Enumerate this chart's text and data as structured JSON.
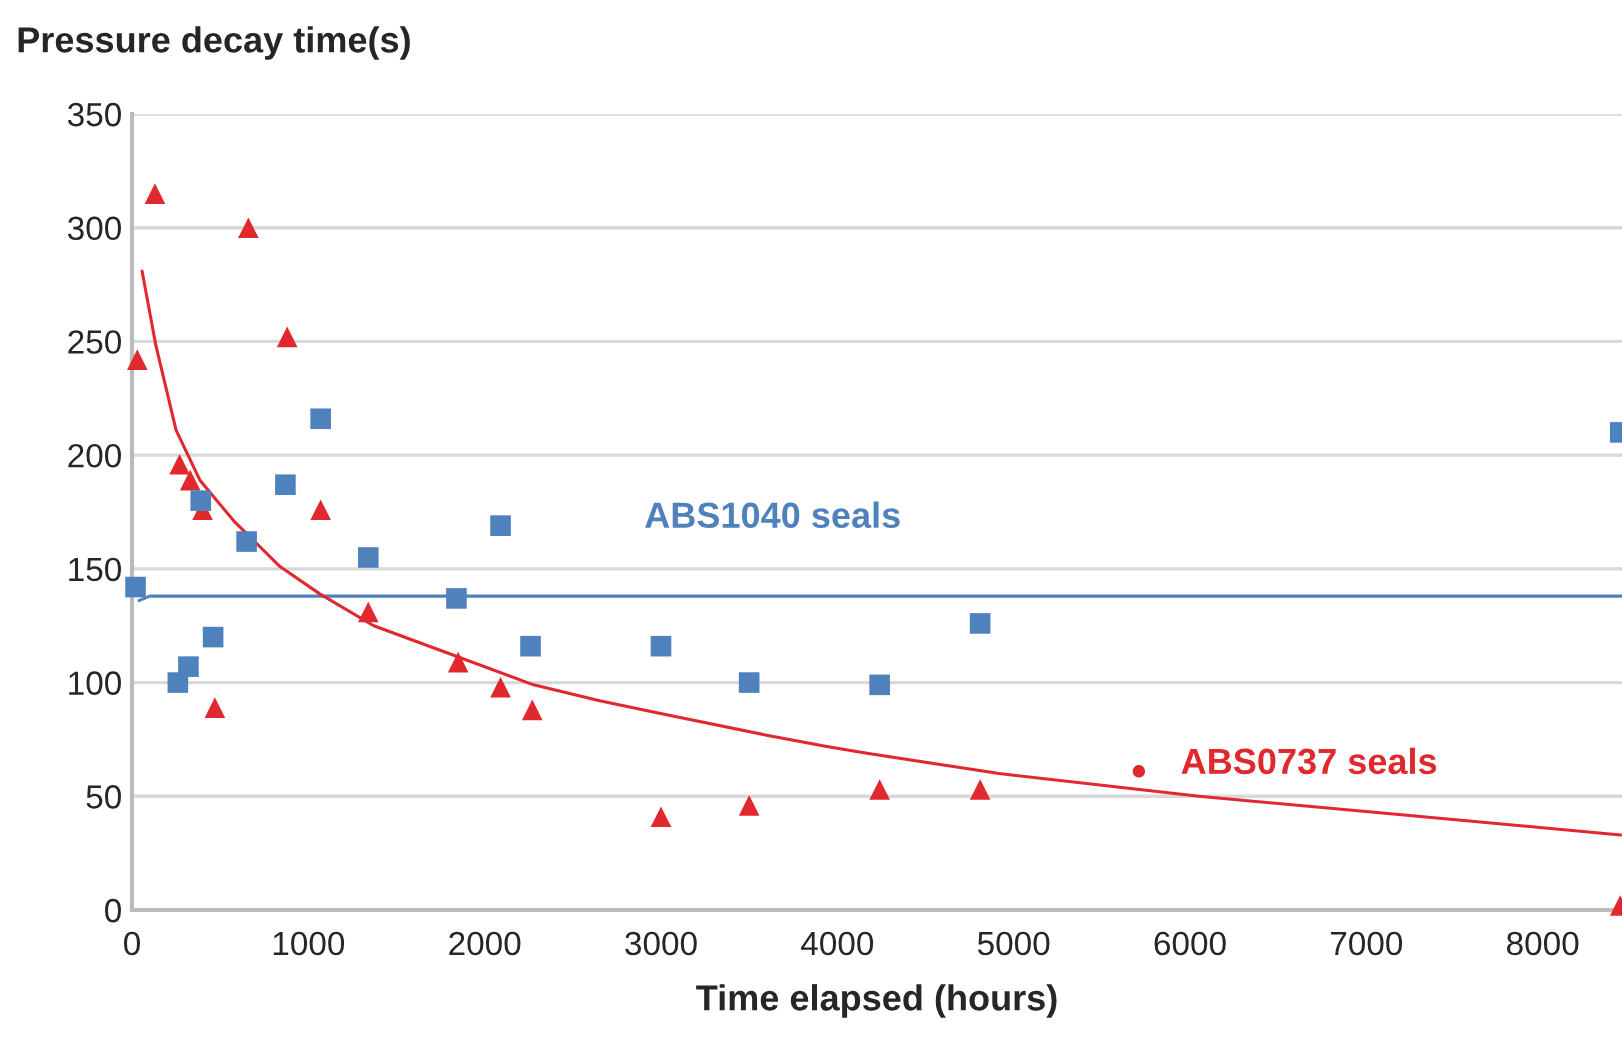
{
  "chart_data": {
    "type": "scatter",
    "ylabel": "Pressure decay time(s)",
    "xlabel": "Time elapsed (hours)",
    "xlim": [
      0,
      8450
    ],
    "xticks": [
      0,
      1000,
      2000,
      3000,
      4000,
      5000,
      6000,
      7000,
      8000
    ],
    "ylim": [
      0,
      350
    ],
    "yticks": [
      0,
      50,
      100,
      150,
      200,
      250,
      300,
      350
    ],
    "grid": "y",
    "legend": false,
    "series": [
      {
        "marker": "triangle",
        "color": "#e0282e",
        "x": [
          30,
          130,
          270,
          330,
          400,
          470,
          660,
          880,
          1070,
          1340,
          1850,
          2090,
          2270,
          3000,
          3500,
          4240,
          4810,
          8440
        ],
        "values": [
          242,
          315,
          196,
          189,
          176,
          89,
          300,
          252,
          176,
          131,
          109,
          98,
          88,
          41,
          46,
          53,
          53,
          2
        ]
      },
      {
        "marker": "circle",
        "color": "#e0282e",
        "x": [
          5710
        ],
        "values": [
          61
        ]
      },
      {
        "marker": "square",
        "color": "#4f81bd",
        "x": [
          20,
          260,
          320,
          390,
          460,
          650,
          870,
          1070,
          1340,
          1840,
          2090,
          2260,
          3000,
          3500,
          4240,
          4810,
          8440
        ],
        "values": [
          142,
          100,
          107,
          180,
          120,
          162,
          187,
          216,
          155,
          137,
          169,
          116,
          116,
          100,
          99,
          126,
          210
        ]
      },
      {
        "type": "line",
        "name": "ABS1040 seals",
        "marker": "none",
        "line_style": "solid",
        "color": "#4f81bd",
        "x": [
          40,
          100,
          8450
        ],
        "values": [
          136,
          138,
          138
        ]
      },
      {
        "type": "line",
        "name": "ABS0737 seals",
        "marker": "none",
        "line_style": "solid",
        "color": "#e0282e",
        "x": [
          57,
          136,
          250,
          385,
          578,
          839,
          1065,
          1371,
          1824,
          2277,
          2652,
          3025,
          3592,
          3932,
          4159,
          4918,
          6051,
          7184,
          8442
        ],
        "values": [
          281,
          248,
          211,
          189,
          171,
          151,
          139,
          125,
          112,
          99,
          92,
          86,
          77,
          72,
          69,
          60,
          50,
          42,
          33
        ]
      }
    ]
  }
}
